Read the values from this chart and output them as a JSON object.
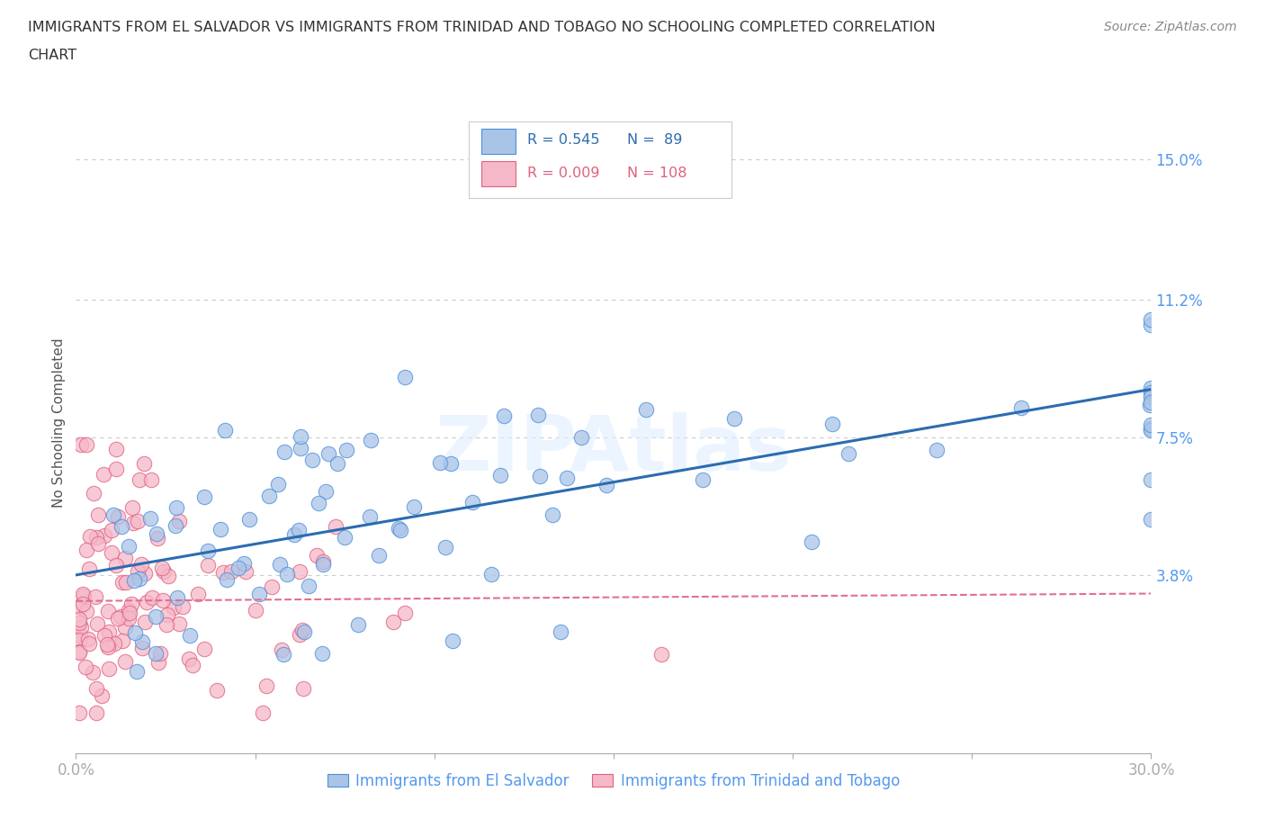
{
  "title_line1": "IMMIGRANTS FROM EL SALVADOR VS IMMIGRANTS FROM TRINIDAD AND TOBAGO NO SCHOOLING COMPLETED CORRELATION",
  "title_line2": "CHART",
  "source": "Source: ZipAtlas.com",
  "ylabel": "No Schooling Completed",
  "xlim": [
    0.0,
    0.3
  ],
  "ylim": [
    -0.01,
    0.168
  ],
  "xticks": [
    0.0,
    0.05,
    0.1,
    0.15,
    0.2,
    0.25,
    0.3
  ],
  "xtick_labels": [
    "0.0%",
    "",
    "",
    "",
    "",
    "",
    "30.0%"
  ],
  "yticks": [
    0.038,
    0.075,
    0.112,
    0.15
  ],
  "ytick_labels": [
    "3.8%",
    "7.5%",
    "11.2%",
    "15.0%"
  ],
  "color_es_fill": "#aac4e8",
  "color_es_edge": "#4a90d9",
  "color_tt_fill": "#f5b8c8",
  "color_tt_edge": "#e06080",
  "color_line_es": "#2b6cb0",
  "color_line_tt": "#e07090",
  "R_es": 0.545,
  "N_es": 89,
  "R_tt": 0.009,
  "N_tt": 108,
  "background_color": "#ffffff",
  "grid_color": "#cccccc",
  "tick_color": "#5599ee",
  "title_color": "#333333",
  "source_color": "#888888",
  "watermark": "ZIPAtlas",
  "es_line_x0": 0.0,
  "es_line_y0": 0.038,
  "es_line_x1": 0.3,
  "es_line_y1": 0.088,
  "tt_line_x0": 0.0,
  "tt_line_y0": 0.031,
  "tt_line_x1": 0.3,
  "tt_line_y1": 0.033
}
